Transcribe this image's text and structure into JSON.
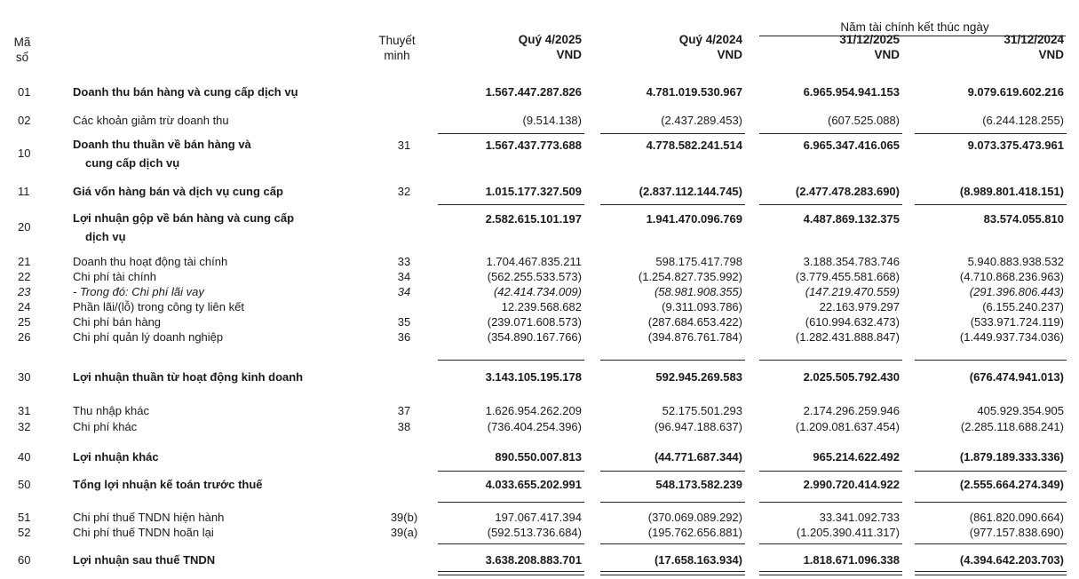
{
  "header": {
    "code_label": [
      "Mã",
      "số"
    ],
    "note_label": [
      "Thuyết",
      "minh"
    ],
    "group_label": "Năm tài chính kết thúc ngày",
    "columns": [
      {
        "period": "Quý 4/2025",
        "unit": "VND"
      },
      {
        "period": "Quý 4/2024",
        "unit": "VND"
      },
      {
        "period": "31/12/2025",
        "unit": "VND"
      },
      {
        "period": "31/12/2024",
        "unit": "VND"
      }
    ]
  },
  "rows": [
    {
      "code": "01",
      "label": "Doanh thu bán hàng và cung cấp dịch vụ",
      "note": "",
      "bold": true,
      "values": [
        "1.567.447.287.826",
        "4.781.019.530.967",
        "6.965.954.941.153",
        "9.079.619.602.216"
      ]
    },
    {
      "code": "02",
      "label": "Các khoản giảm trừ doanh thu",
      "note": "",
      "values": [
        "(9.514.138)",
        "(2.437.289.453)",
        "(607.525.088)",
        "(6.244.128.255)"
      ]
    },
    {
      "code": "10",
      "label": "Doanh thu thuần về bán hàng và",
      "label2": "cung cấp dịch vụ",
      "note": "31",
      "bold": true,
      "values": [
        "1.567.437.773.688",
        "4.778.582.241.514",
        "6.965.347.416.065",
        "9.073.375.473.961"
      ]
    },
    {
      "code": "11",
      "label": "Giá vốn hàng bán và dịch vụ cung cấp",
      "note": "32",
      "bold": true,
      "values": [
        "1.015.177.327.509",
        "(2.837.112.144.745)",
        "(2.477.478.283.690)",
        "(8.989.801.418.151)"
      ]
    },
    {
      "code": "20",
      "label": "Lợi nhuận gộp về bán hàng và cung cấp",
      "label2": "dịch vụ",
      "note": "",
      "bold": true,
      "values": [
        "2.582.615.101.197",
        "1.941.470.096.769",
        "4.487.869.132.375",
        "83.574.055.810"
      ]
    },
    {
      "code": "21",
      "label": "Doanh thu hoạt động tài chính",
      "note": "33",
      "values": [
        "1.704.467.835.211",
        "598.175.417.798",
        "3.188.354.783.746",
        "5.940.883.938.532"
      ]
    },
    {
      "code": "22",
      "label": "Chi phí tài chính",
      "note": "34",
      "values": [
        "(562.255.533.573)",
        "(1.254.827.735.992)",
        "(3.779.455.581.668)",
        "(4.710.868.236.963)"
      ]
    },
    {
      "code": "23",
      "label": "- Trong đó: Chi phí lãi vay",
      "note": "34",
      "italic": true,
      "values": [
        "(42.414.734.009)",
        "(58.981.908.355)",
        "(147.219.470.559)",
        "(291.396.806.443)"
      ]
    },
    {
      "code": "24",
      "label": "Phần lãi/(lỗ) trong công ty liên kết",
      "note": "",
      "values": [
        "12.239.568.682",
        "(9.311.093.786)",
        "22.163.979.297",
        "(6.155.240.237)"
      ]
    },
    {
      "code": "25",
      "label": "Chi phí bán hàng",
      "note": "35",
      "values": [
        "(239.071.608.573)",
        "(287.684.653.422)",
        "(610.994.632.473)",
        "(533.971.724.119)"
      ]
    },
    {
      "code": "26",
      "label": "Chi phí quản lý doanh nghiệp",
      "note": "36",
      "values": [
        "(354.890.167.766)",
        "(394.876.761.784)",
        "(1.282.431.888.847)",
        "(1.449.937.734.036)"
      ]
    },
    {
      "code": "30",
      "label": "Lợi nhuận thuần từ hoạt động kinh doanh",
      "note": "",
      "bold": true,
      "values": [
        "3.143.105.195.178",
        "592.945.269.583",
        "2.025.505.792.430",
        "(676.474.941.013)"
      ]
    },
    {
      "code": "31",
      "label": "Thu nhập khác",
      "note": "37",
      "values": [
        "1.626.954.262.209",
        "52.175.501.293",
        "2.174.296.259.946",
        "405.929.354.905"
      ]
    },
    {
      "code": "32",
      "label": "Chi phí khác",
      "note": "38",
      "values": [
        "(736.404.254.396)",
        "(96.947.188.637)",
        "(1.209.081.637.454)",
        "(2.285.118.688.241)"
      ]
    },
    {
      "code": "40",
      "label": "Lợi nhuận khác",
      "note": "",
      "bold": true,
      "values": [
        "890.550.007.813",
        "(44.771.687.344)",
        "965.214.622.492",
        "(1.879.189.333.336)"
      ]
    },
    {
      "code": "50",
      "label": "Tổng lợi nhuận kế toán trước thuế",
      "note": "",
      "bold": true,
      "values": [
        "4.033.655.202.991",
        "548.173.582.239",
        "2.990.720.414.922",
        "(2.555.664.274.349)"
      ]
    },
    {
      "code": "51",
      "label": "Chi phí thuế TNDN hiện hành",
      "note": "39(b)",
      "values": [
        "197.067.417.394",
        "(370.069.089.292)",
        "33.341.092.733",
        "(861.820.090.664)"
      ]
    },
    {
      "code": "52",
      "label": "Chi phí thuế TNDN hoãn lại",
      "note": "39(a)",
      "values": [
        "(592.513.736.684)",
        "(195.762.656.881)",
        "(1.205.390.411.317)",
        "(977.157.838.690)"
      ]
    },
    {
      "code": "60",
      "label": "Lợi nhuận sau thuế TNDN",
      "note": "",
      "bold": true,
      "values": [
        "3.638.208.883.701",
        "(17.658.163.934)",
        "1.818.671.096.338",
        "(4.394.642.203.703)"
      ]
    }
  ]
}
